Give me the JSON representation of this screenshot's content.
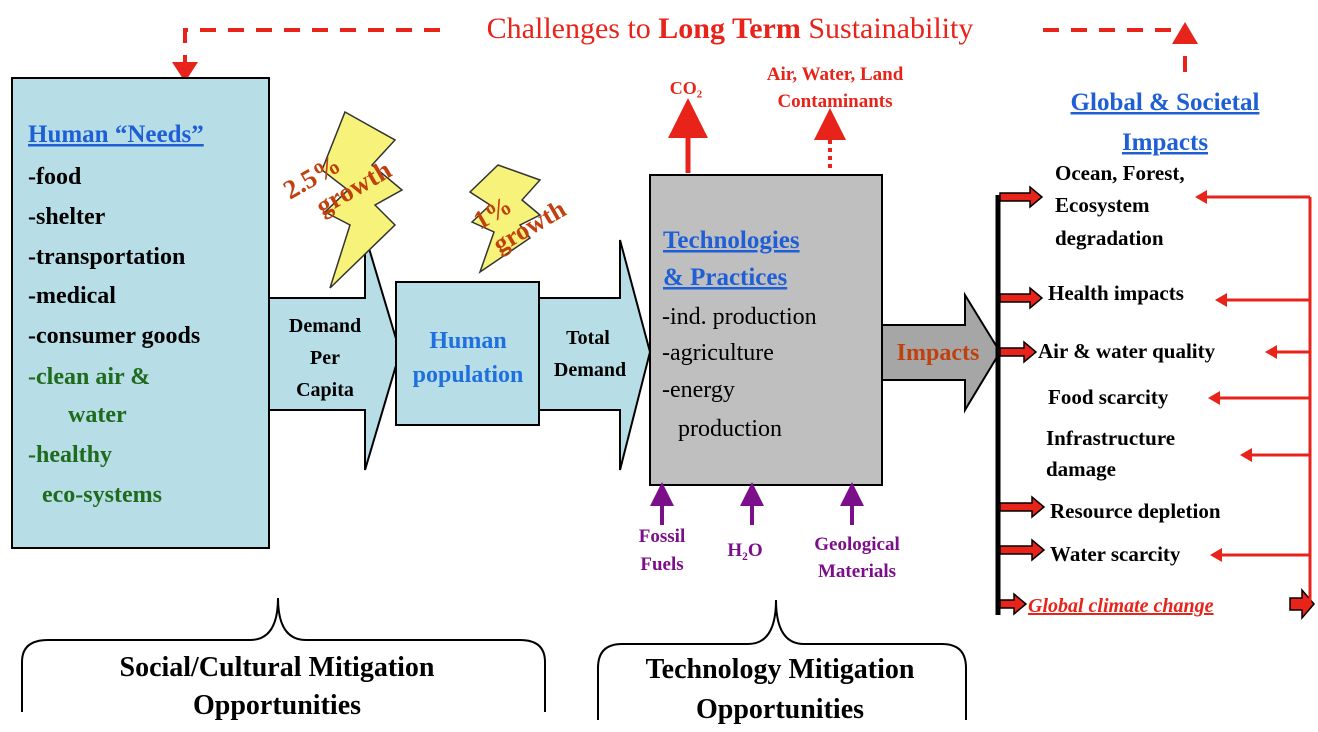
{
  "title": {
    "before": "Challenges to",
    "emphasis": "Long Term",
    "after": "Sustainability"
  },
  "needs": {
    "heading": "Human “Needs”",
    "items": [
      "-food",
      "-shelter",
      "-transportation",
      "-medical",
      "-consumer goods",
      "-clean air &",
      "water",
      "-healthy",
      "eco-systems"
    ]
  },
  "growth": [
    {
      "lines": [
        "2.5%",
        "growth"
      ]
    },
    {
      "lines": [
        "1%",
        "growth"
      ]
    }
  ],
  "flow": {
    "demand_per_capita": [
      "Demand",
      "Per",
      "Capita"
    ],
    "human_population": [
      "Human",
      "population"
    ],
    "total_demand": [
      "Total",
      "Demand"
    ]
  },
  "technologies": {
    "heading": [
      "Technologies",
      "& Practices"
    ],
    "items": [
      "-ind. production",
      "-agriculture",
      "-energy",
      "production"
    ]
  },
  "outputs": {
    "co2": "CO₂",
    "contaminants": [
      "Air, Water, Land",
      "Contaminants"
    ]
  },
  "inputs": {
    "fossil_fuels": [
      "Fossil",
      "Fuels"
    ],
    "water": "H₂O",
    "geological": [
      "Geological",
      "Materials"
    ]
  },
  "impacts_arrow": "Impacts",
  "impacts": {
    "heading": [
      "Global & Societal",
      "Impacts"
    ],
    "items": [
      "Ocean, Forest,",
      "Ecosystem",
      "degradation",
      "Health impacts",
      "Air & water quality",
      "Food scarcity",
      "Infrastructure",
      "damage",
      "Resource depletion",
      "Water scarcity",
      "Global climate change"
    ]
  },
  "mitigation": {
    "social": [
      "Social/Cultural Mitigation",
      "Opportunities"
    ],
    "technology": [
      "Technology Mitigation",
      "Opportunities"
    ]
  }
}
